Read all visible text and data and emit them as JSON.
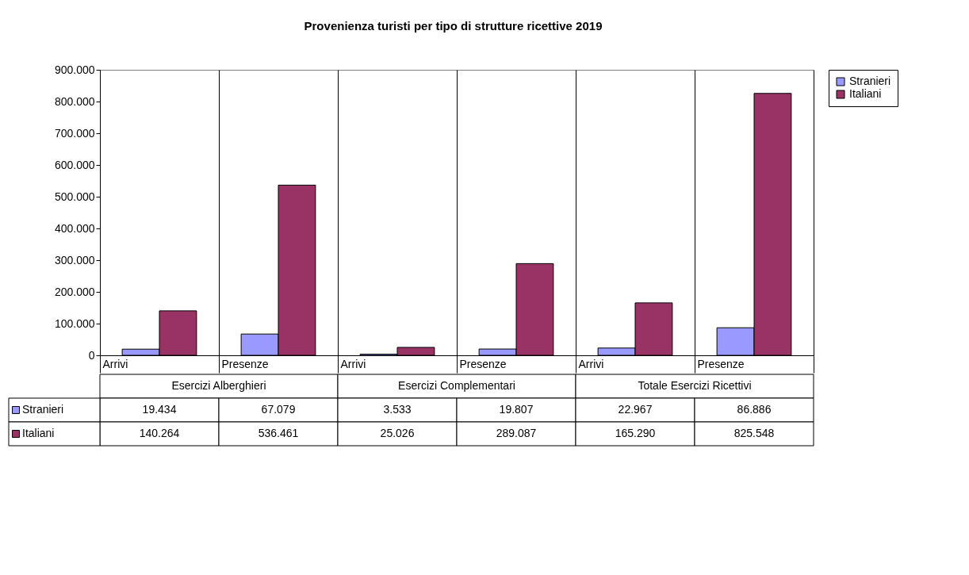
{
  "chart_data": {
    "type": "bar",
    "title": "Provenienza turisti per tipo di strutture ricettive 2019",
    "categories": [
      "Arrivi",
      "Presenze",
      "Arrivi",
      "Presenze",
      "Arrivi",
      "Presenze"
    ],
    "series": [
      {
        "name": "Stranieri",
        "color": "#9999ff",
        "values": [
          19434,
          67079,
          3533,
          19807,
          22967,
          86886
        ],
        "value_labels": [
          "19.434",
          "67.079",
          "3.533",
          "19.807",
          "22.967",
          "86.886"
        ]
      },
      {
        "name": "Italiani",
        "color": "#993366",
        "values": [
          140264,
          536461,
          25026,
          289087,
          165290,
          825548
        ],
        "value_labels": [
          "140.264",
          "536.461",
          "25.026",
          "289.087",
          "165.290",
          "825.548"
        ]
      }
    ],
    "ylim": [
      0,
      900000
    ],
    "yticks": [
      0,
      {
        "value": 100000,
        "label": "100.000"
      },
      {
        "value": 200000,
        "label": "200.000"
      },
      {
        "value": 300000,
        "label": "300.000"
      },
      {
        "value": 400000,
        "label": "400.000"
      },
      {
        "value": 500000,
        "label": "500.000"
      },
      {
        "value": 600000,
        "label": "600.000"
      },
      {
        "value": 700000,
        "label": "700.000"
      },
      {
        "value": 800000,
        "label": "800.000"
      },
      {
        "value": 900000,
        "label": "900.000"
      }
    ],
    "grid": "x",
    "legend": "right",
    "annotations": [
      "Esercizi Alberghieri",
      "Esercizi Complementari",
      "Totale Esercizi Ricettivi"
    ]
  }
}
